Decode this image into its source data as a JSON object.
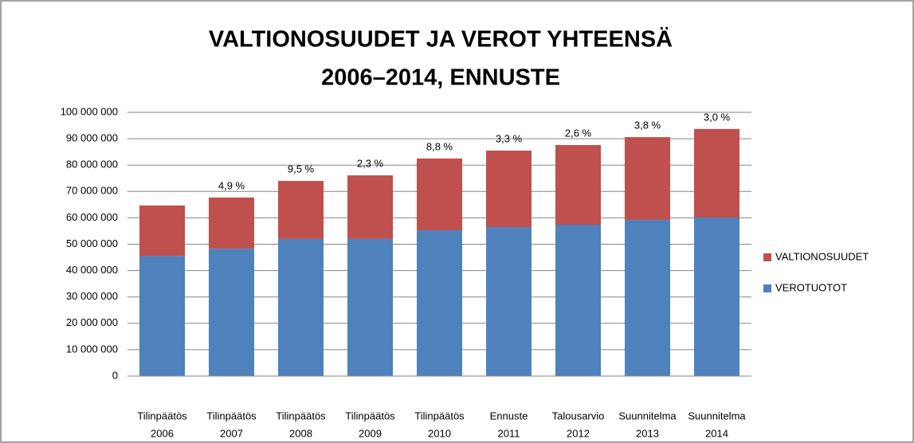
{
  "chart_data": {
    "type": "stacked_bar",
    "title": [
      "VALTIONOSUUDET JA VEROT YHTEENSÄ",
      "2006–2014, ENNUSTE"
    ],
    "categories": [
      [
        "Tilinpäätös",
        "2006"
      ],
      [
        "Tilinpäätös",
        "2007"
      ],
      [
        "Tilinpäätös",
        "2008"
      ],
      [
        "Tilinpäätös",
        "2009"
      ],
      [
        "Tilinpäätös",
        "2010"
      ],
      [
        "Ennuste",
        "2011"
      ],
      [
        "Talousarvio",
        "2012"
      ],
      [
        "Suunnitelma",
        "2013"
      ],
      [
        "Suunnitelma",
        "2014"
      ]
    ],
    "series": [
      {
        "name": "VEROTUOTOT",
        "color": "#4f81bd",
        "values": [
          45600000,
          48300000,
          52000000,
          52000000,
          55300000,
          56500000,
          57400000,
          59200000,
          60100000
        ]
      },
      {
        "name": "VALTIONOSUUDET",
        "color": "#c0504d",
        "values": [
          19100000,
          19400000,
          22000000,
          24100000,
          27200000,
          29000000,
          30200000,
          31400000,
          33600000
        ]
      }
    ],
    "annotations": [
      null,
      "4,9 %",
      "9,5 %",
      "2,3 %",
      "8,8 %",
      "3,3 %",
      "2,6 %",
      "3,8 %",
      "3,0 %"
    ],
    "ylim": [
      0,
      100000000
    ],
    "yticks": [
      0,
      {
        "value": 10000000,
        "label": "10 000 000"
      },
      {
        "value": 20000000,
        "label": "20 000 000"
      },
      {
        "value": 30000000,
        "label": "30 000 000"
      },
      {
        "value": 40000000,
        "label": "40 000 000"
      },
      {
        "value": 50000000,
        "label": "50 000 000"
      },
      {
        "value": 60000000,
        "label": "60 000 000"
      },
      {
        "value": 70000000,
        "label": "70 000 000"
      },
      {
        "value": 80000000,
        "label": "80 000 000"
      },
      {
        "value": 90000000,
        "label": "90 000 000"
      },
      {
        "value": 100000000,
        "label": "100 000 000"
      }
    ],
    "grid": true,
    "legend": "right"
  }
}
